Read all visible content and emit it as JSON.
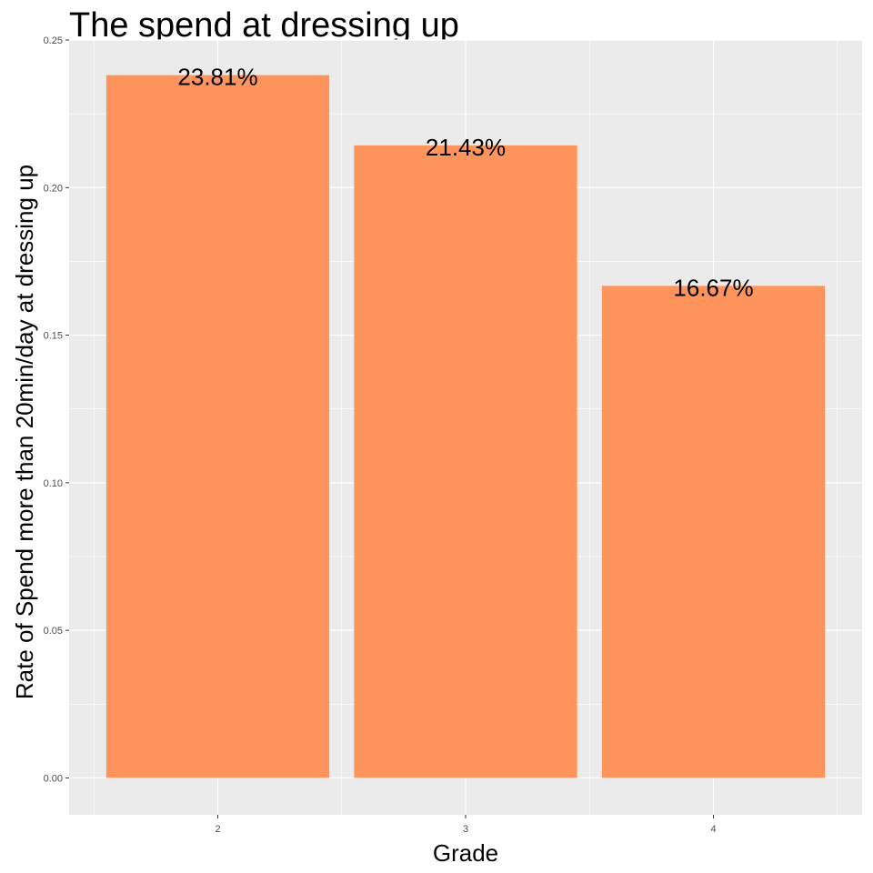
{
  "chart_data": {
    "type": "bar",
    "title": "The spend at dressing up",
    "xlabel": "Grade",
    "ylabel": "Rate of Spend more than 20min/day at dressing up",
    "categories": [
      "2",
      "3",
      "4"
    ],
    "values": [
      0.2381,
      0.2143,
      0.1667
    ],
    "data_labels": [
      "23.81%",
      "21.43%",
      "16.67%"
    ],
    "ylim": [
      -0.0125,
      0.25
    ],
    "yticks": [
      0.0,
      0.05,
      0.1,
      0.15,
      0.2,
      0.25
    ],
    "ytick_labels": [
      "0.00",
      "0.05",
      "0.10",
      "0.15",
      "0.20",
      "0.25"
    ],
    "grid": true,
    "bar_color": "#FF955C",
    "panel_color": "#EBEBEB",
    "grid_color": "#FFFFFF"
  }
}
